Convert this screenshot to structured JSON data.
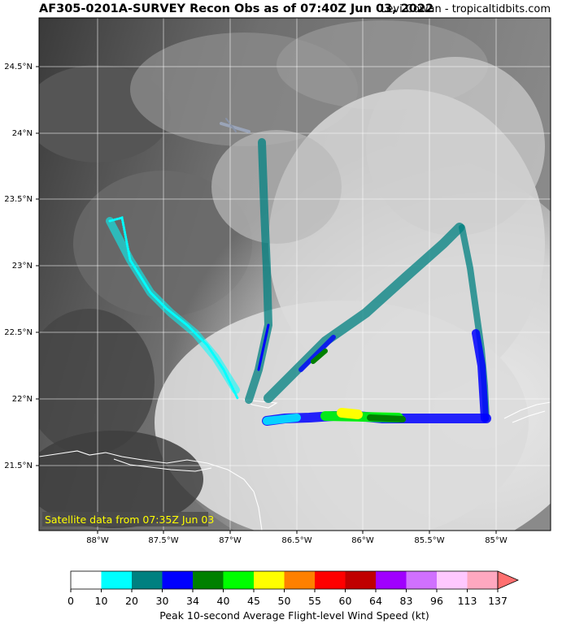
{
  "title": "AF305-0201A-SURVEY Recon Obs as of 07:40Z Jun 03, 2022",
  "credit": "Levi Cowan - tropicaltidbits.com",
  "satellite_note": "Satellite data from 07:35Z Jun 03",
  "lat_labels": [
    "24.5°N",
    "24°N",
    "23.5°N",
    "23°N",
    "22.5°N",
    "22°N",
    "21.5°N"
  ],
  "lon_labels": [
    "88°W",
    "87.5°W",
    "87°W",
    "86.5°W",
    "86°W",
    "85.5°W",
    "85°W"
  ],
  "colorbar": {
    "title": "Peak 10-second Average Flight-level Wind Speed (kt)",
    "ticks": [
      "0",
      "10",
      "20",
      "30",
      "34",
      "40",
      "45",
      "50",
      "55",
      "60",
      "64",
      "83",
      "96",
      "113",
      "137"
    ],
    "colors": [
      "#ffffff",
      "#00ffff",
      "#008080",
      "#0000ff",
      "#008000",
      "#00ff00",
      "#ffff00",
      "#ff8000",
      "#ff0000",
      "#c00000",
      "#a000ff",
      "#d070ff",
      "#ffc8ff",
      "#ffa8c0"
    ],
    "extend_color": "#ff6f6f"
  },
  "flight_track": {
    "speed_bins_kt": [
      "0-10",
      "10-20",
      "20-30",
      "30-34",
      "34-40",
      "40-45",
      "45-50"
    ],
    "segments": [
      {
        "from": [
          -87.8,
          23.3
        ],
        "to": [
          -86.9,
          22.0
        ],
        "speed_kt": "10-20"
      },
      {
        "from": [
          -86.9,
          22.0
        ],
        "to": [
          -86.8,
          23.95
        ],
        "speed_kt": "20-30"
      },
      {
        "from": [
          -86.6,
          22.0
        ],
        "to": [
          -85.1,
          23.3
        ],
        "speed_kt": "20-30"
      },
      {
        "from": [
          -85.1,
          23.3
        ],
        "to": [
          -84.95,
          21.8
        ],
        "speed_kt": "30-34"
      },
      {
        "from": [
          -84.95,
          21.8
        ],
        "to": [
          -86.7,
          21.8
        ],
        "speed_kt": "34-50"
      }
    ]
  }
}
